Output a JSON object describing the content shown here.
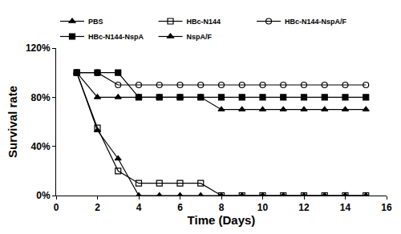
{
  "chart_data": {
    "type": "line",
    "x_label": "Time (Days)",
    "y_label": "Survival rate",
    "x": [
      1,
      2,
      3,
      4,
      5,
      6,
      7,
      8,
      9,
      10,
      11,
      12,
      13,
      14,
      15
    ],
    "series": [
      {
        "name": "PBS",
        "color": "#000000",
        "marker": "triangle-up",
        "values": [
          100,
          53,
          30,
          0,
          0,
          0,
          0,
          0,
          0,
          0,
          0,
          0,
          0,
          0,
          0
        ]
      },
      {
        "name": "HBc-N144",
        "color": "#000000",
        "marker": "square-open",
        "values": [
          100,
          55,
          20,
          10,
          10,
          10,
          10,
          0,
          0,
          0,
          0,
          0,
          0,
          0,
          0
        ]
      },
      {
        "name": "HBc-N144-NspA/F",
        "color": "#000000",
        "marker": "circle-open",
        "values": [
          100,
          100,
          90,
          90,
          90,
          90,
          90,
          90,
          90,
          90,
          90,
          90,
          90,
          90,
          90
        ]
      },
      {
        "name": "HBc-N144-NspA",
        "color": "#000000",
        "marker": "square",
        "values": [
          100,
          100,
          100,
          80,
          80,
          80,
          80,
          80,
          80,
          80,
          80,
          80,
          80,
          80,
          80
        ]
      },
      {
        "name": "NspA/F",
        "color": "#000000",
        "marker": "triangle-up",
        "values": [
          100,
          80,
          80,
          80,
          80,
          80,
          80,
          70,
          70,
          70,
          70,
          70,
          70,
          70,
          70
        ]
      }
    ],
    "xlim": [
      0,
      16
    ],
    "xticks": [
      0,
      2,
      4,
      6,
      8,
      10,
      12,
      14,
      16
    ],
    "ylim": [
      0,
      120
    ],
    "yticks": [
      {
        "value": 0,
        "label": "0%"
      },
      {
        "value": 40,
        "label": "40%"
      },
      {
        "value": 80,
        "label": "80%"
      },
      {
        "value": 120,
        "label": "120%"
      }
    ],
    "grid": false,
    "legend": "top"
  }
}
